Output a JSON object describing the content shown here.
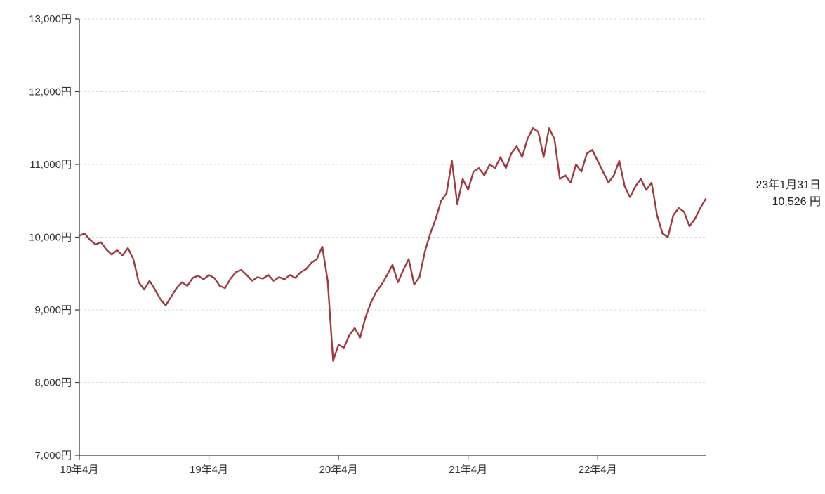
{
  "page": {
    "background": "#ffffff"
  },
  "chart_data": {
    "type": "line",
    "title": "",
    "legend": "none",
    "grid": "horizontal-dashed",
    "line_color": "#9e3a40",
    "x_interval_months": 0.5,
    "x_total_months": 58,
    "x_start": "2018-04",
    "x_end": "2023-01-31",
    "x_ticks": [
      {
        "months": 0,
        "label": "18年4月"
      },
      {
        "months": 12,
        "label": "19年4月"
      },
      {
        "months": 24,
        "label": "20年4月"
      },
      {
        "months": 36,
        "label": "21年4月"
      },
      {
        "months": 48,
        "label": "22年4月"
      }
    ],
    "y_axis": {
      "min": 7000,
      "max": 13000,
      "step": 1000,
      "unit": "円",
      "ticks": [
        {
          "value": 13000,
          "label": "13,000円"
        },
        {
          "value": 12000,
          "label": "12,000円"
        },
        {
          "value": 11000,
          "label": "11,000円"
        },
        {
          "value": 10000,
          "label": "10,000円"
        },
        {
          "value": 9000,
          "label": "9,000円"
        },
        {
          "value": 8000,
          "label": "8,000円"
        },
        {
          "value": 7000,
          "label": "7,000円"
        }
      ]
    },
    "values": [
      10020,
      10050,
      9960,
      9900,
      9930,
      9830,
      9760,
      9820,
      9750,
      9850,
      9700,
      9380,
      9280,
      9400,
      9280,
      9150,
      9060,
      9180,
      9300,
      9380,
      9330,
      9440,
      9470,
      9420,
      9480,
      9440,
      9330,
      9300,
      9430,
      9520,
      9550,
      9480,
      9400,
      9450,
      9430,
      9480,
      9400,
      9450,
      9420,
      9480,
      9440,
      9520,
      9560,
      9650,
      9700,
      9870,
      9400,
      8300,
      8520,
      8480,
      8650,
      8750,
      8620,
      8900,
      9100,
      9250,
      9350,
      9480,
      9620,
      9380,
      9550,
      9700,
      9350,
      9450,
      9800,
      10050,
      10250,
      10500,
      10600,
      11050,
      10450,
      10800,
      10650,
      10900,
      10950,
      10850,
      11000,
      10950,
      11100,
      10950,
      11150,
      11250,
      11100,
      11350,
      11500,
      11450,
      11100,
      11500,
      11350,
      10800,
      10850,
      10750,
      11000,
      10900,
      11150,
      11200,
      11050,
      10900,
      10750,
      10850,
      11050,
      10700,
      10550,
      10700,
      10800,
      10650,
      10750,
      10300,
      10050,
      10000,
      10300,
      10400,
      10350,
      10150,
      10250,
      10400,
      10526
    ],
    "annotation": {
      "date": "23年1月31日",
      "value": "10,526 円"
    }
  }
}
